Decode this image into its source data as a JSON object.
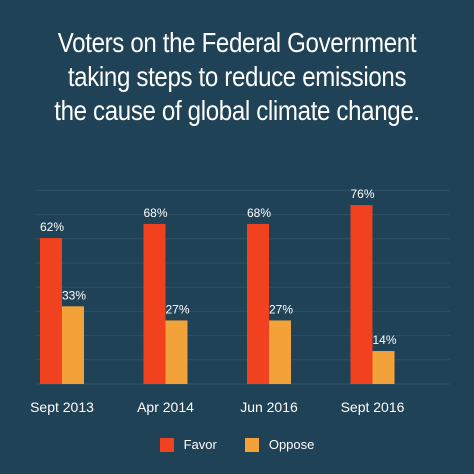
{
  "title_lines": [
    "Voters on the Federal Government",
    "taking steps to reduce emissions",
    "the cause of global climate change."
  ],
  "colors": {
    "background": "#1f4257",
    "favor": "#f2411f",
    "oppose": "#f3a23a",
    "grid": "#2e5166",
    "text": "#ffffff"
  },
  "chart_data": {
    "type": "bar",
    "title": "Voters on the Federal Government taking steps to reduce emissions the cause of global climate change.",
    "categories": [
      "Sept 2013",
      "Apr 2014",
      "Jun 2016",
      "Sept 2016"
    ],
    "series": [
      {
        "name": "Favor",
        "values": [
          62,
          68,
          68,
          76
        ],
        "labels": [
          "62%",
          "68%",
          "68%",
          "76%"
        ]
      },
      {
        "name": "Oppose",
        "values": [
          33,
          27,
          27,
          14
        ],
        "labels": [
          "33%",
          "27%",
          "27%",
          "14%"
        ]
      }
    ],
    "ylim": [
      0,
      100
    ],
    "grid": true,
    "legend_position": "bottom-center",
    "xlabel": "",
    "ylabel": ""
  },
  "legend": [
    {
      "label": "Favor",
      "color": "#f2411f"
    },
    {
      "label": "Oppose",
      "color": "#f3a23a"
    }
  ]
}
